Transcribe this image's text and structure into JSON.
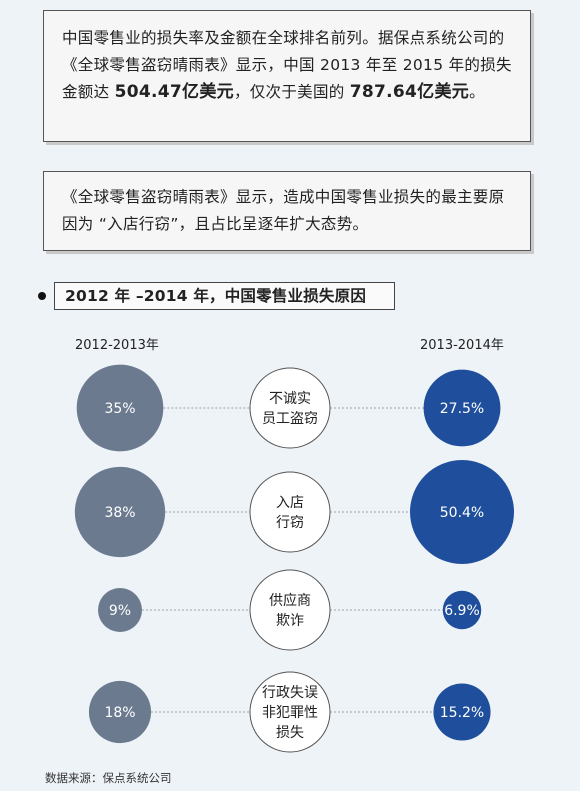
{
  "intro": {
    "p1_a": "中国零售业的损失率及金额在全球排名前列。据保点系统公司的《全球零售盗窃晴雨表》显示，中国 2013 年至 2015 年的损失金额达 ",
    "p1_amount1": "504.47亿美元",
    "p1_b": "，仅次于美国的 ",
    "p1_amount2": "787.64亿美元",
    "p1_c": "。",
    "p2": "《全球零售盗窃晴雨表》显示，造成中国零售业损失的最主要原因为 “入店行窃”，且占比呈逐年扩大态势。"
  },
  "section_title": "2012 年 –2014 年，中国零售业损失原因",
  "columns": {
    "left": "2012-2013年",
    "right": "2013-2014年"
  },
  "colors": {
    "left": "#6b7a8f",
    "right": "#1f4f9c",
    "center_bg": "#ffffff",
    "connector": "#9aa3ad"
  },
  "chart_data": {
    "type": "bubble-comparison",
    "categories": [
      "不诚实员工盗窃",
      "入店行窃",
      "供应商欺诈",
      "行政失误非犯罪性损失"
    ],
    "category_lines": [
      [
        "不诚实",
        "员工盗窃"
      ],
      [
        "入店",
        "行窃"
      ],
      [
        "供应商",
        "欺诈"
      ],
      [
        "行政失误",
        "非犯罪性",
        "损失"
      ]
    ],
    "series": [
      {
        "name": "2012-2013年",
        "values": [
          35,
          38,
          9,
          18
        ],
        "labels": [
          "35%",
          "38%",
          "9%",
          "18%"
        ]
      },
      {
        "name": "2013-2014年",
        "values": [
          27.5,
          50.4,
          6.9,
          15.2
        ],
        "labels": [
          "27.5%",
          "50.4%",
          "6.9%",
          "15.2%"
        ]
      }
    ]
  },
  "source": "数据来源：保点系统公司"
}
